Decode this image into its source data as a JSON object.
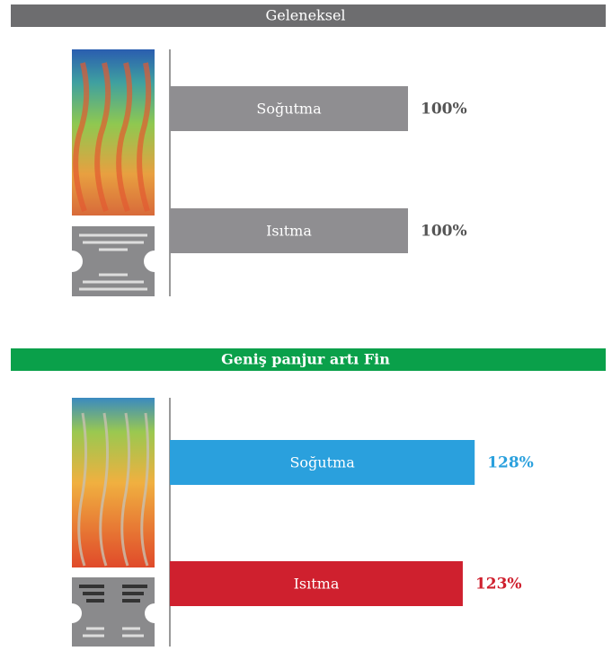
{
  "chart_data": [
    {
      "type": "bar",
      "title": "Geleneksel",
      "title_background": "#6d6d6f",
      "categories": [
        "Soğutma",
        "Isıtma"
      ],
      "values": [
        100,
        100
      ],
      "value_labels": [
        "100%",
        "100%"
      ],
      "colors": [
        "#8f8e91",
        "#8f8e91"
      ],
      "label_colors": [
        "#555555",
        "#555555"
      ]
    },
    {
      "type": "bar",
      "title": "Geniş panjur artı Fin",
      "title_background": "#0aa04a",
      "categories": [
        "Soğutma",
        "Isıtma"
      ],
      "values": [
        128,
        123
      ],
      "value_labels": [
        "128%",
        "123%"
      ],
      "colors": [
        "#2aa0dd",
        "#cf202e"
      ],
      "label_colors": [
        "#2aa0dd",
        "#cf202e"
      ]
    }
  ]
}
